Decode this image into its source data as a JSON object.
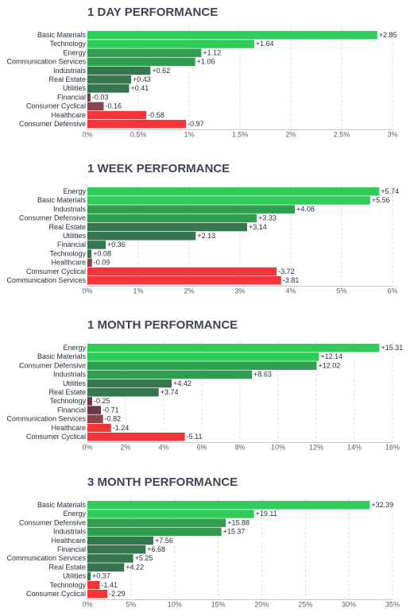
{
  "colors": {
    "pos_strong": "#30cc5a",
    "pos_mid": "#2f9e4f",
    "pos_weak": "#35764e",
    "neg_weak": "#6a3a4a",
    "neg_mid": "#8b444e",
    "neg_strong": "#f63538"
  },
  "chart_data": [
    {
      "type": "bar",
      "orientation": "horizontal",
      "title": "1 DAY PERFORMANCE",
      "unit": "%",
      "xlim": [
        0,
        3
      ],
      "ticks": [
        0,
        0.5,
        1,
        1.5,
        2,
        2.5,
        3
      ],
      "tick_labels": [
        "0%",
        "0.5%",
        "1%",
        "1.5%",
        "2%",
        "2.5%",
        "3%"
      ],
      "categories": [
        "Basic Materials",
        "Technology",
        "Energy",
        "Communication Services",
        "Industrials",
        "Real Estate",
        "Utilities",
        "Financial",
        "Consumer Cyclical",
        "Healthcare",
        "Consumer Defensive"
      ],
      "values": [
        2.85,
        1.64,
        1.12,
        1.06,
        0.62,
        0.43,
        0.41,
        -0.03,
        -0.16,
        -0.58,
        -0.97
      ],
      "value_labels": [
        "+2.85",
        "+1.64",
        "+1.12",
        "+1.06",
        "+0.62",
        "+0.43",
        "+0.41",
        "-0.03",
        "-0.16",
        "-0.58",
        "-0.97"
      ],
      "grid": true
    },
    {
      "type": "bar",
      "orientation": "horizontal",
      "title": "1 WEEK PERFORMANCE",
      "unit": "%",
      "xlim": [
        0,
        6
      ],
      "ticks": [
        0,
        1,
        2,
        3,
        4,
        5,
        6
      ],
      "tick_labels": [
        "0%",
        "1%",
        "2%",
        "3%",
        "4%",
        "5%",
        "6%"
      ],
      "categories": [
        "Energy",
        "Basic Materials",
        "Industrials",
        "Consumer Defensive",
        "Real Estate",
        "Utilities",
        "Financial",
        "Technology",
        "Healthcare",
        "Consumer Cyclical",
        "Communication Services"
      ],
      "values": [
        5.74,
        5.56,
        4.08,
        3.33,
        3.14,
        2.13,
        0.36,
        0.08,
        -0.09,
        -3.72,
        -3.81
      ],
      "value_labels": [
        "+5.74",
        "+5.56",
        "+4.08",
        "+3.33",
        "+3.14",
        "+2.13",
        "+0.36",
        "+0.08",
        "-0.09",
        "-3.72",
        "-3.81"
      ],
      "grid": true
    },
    {
      "type": "bar",
      "orientation": "horizontal",
      "title": "1 MONTH PERFORMANCE",
      "unit": "%",
      "xlim": [
        0,
        16
      ],
      "ticks": [
        0,
        2,
        4,
        6,
        8,
        10,
        12,
        14,
        16
      ],
      "tick_labels": [
        "0%",
        "2%",
        "4%",
        "6%",
        "8%",
        "10%",
        "12%",
        "14%",
        "16%"
      ],
      "categories": [
        "Energy",
        "Basic Materials",
        "Consumer Defensive",
        "Industrials",
        "Utilities",
        "Real Estate",
        "Technology",
        "Financial",
        "Communication Services",
        "Healthcare",
        "Consumer Cyclical"
      ],
      "values": [
        15.31,
        12.14,
        12.02,
        8.63,
        4.42,
        3.74,
        -0.25,
        -0.71,
        -0.82,
        -1.24,
        -5.11
      ],
      "value_labels": [
        "+15.31",
        "+12.14",
        "+12.02",
        "+8.63",
        "+4.42",
        "+3.74",
        "-0.25",
        "-0.71",
        "-0.82",
        "-1.24",
        "-5.11"
      ],
      "grid": true
    },
    {
      "type": "bar",
      "orientation": "horizontal",
      "title": "3 MONTH PERFORMANCE",
      "unit": "%",
      "xlim": [
        0,
        35
      ],
      "ticks": [
        0,
        5,
        10,
        15,
        20,
        25,
        30,
        35
      ],
      "tick_labels": [
        "0%",
        "5%",
        "10%",
        "15%",
        "20%",
        "25%",
        "30%",
        "35%"
      ],
      "categories": [
        "Basic Materials",
        "Energy",
        "Consumer Defensive",
        "Industrials",
        "Healthcare",
        "Financial",
        "Communication Services",
        "Real Estate",
        "Utilities",
        "Technology",
        "Consumer Cyclical"
      ],
      "values": [
        32.39,
        19.11,
        15.88,
        15.37,
        7.56,
        6.68,
        5.25,
        4.22,
        0.37,
        -1.41,
        -2.29
      ],
      "value_labels": [
        "+32.39",
        "+19.11",
        "+15.88",
        "+15.37",
        "+7.56",
        "+6.68",
        "+5.25",
        "+4.22",
        "+0.37",
        "-1.41",
        "-2.29"
      ],
      "grid": true
    }
  ]
}
